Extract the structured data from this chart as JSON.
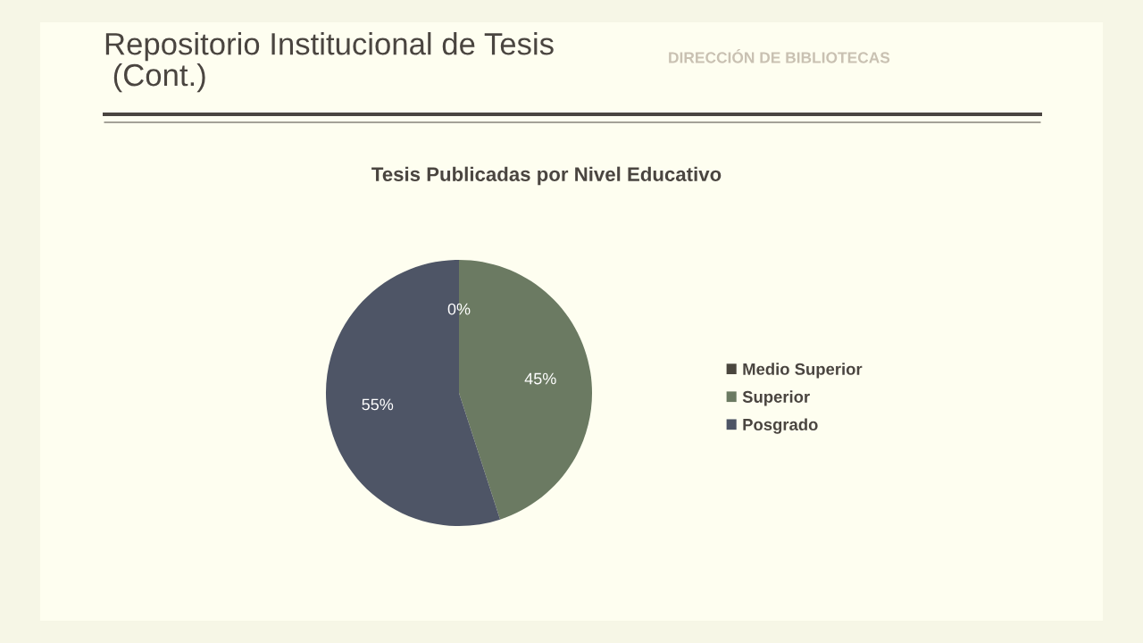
{
  "chart_data": {
    "type": "pie",
    "title": "Tesis Publicadas por Nivel Educativo",
    "categories": [
      "Medio Superior",
      "Superior",
      "Posgrado"
    ],
    "values": [
      0,
      45,
      55
    ],
    "colors": [
      "#4a463e",
      "#6b7a62",
      "#4e5566"
    ],
    "value_labels": [
      "0%",
      "45%",
      "55%"
    ],
    "legend": "right",
    "annotations": [
      "Repositorio Institucional de Tesis\n (Cont.)",
      "DIRECCIÓN DE BIBLIOTECAS"
    ]
  }
}
